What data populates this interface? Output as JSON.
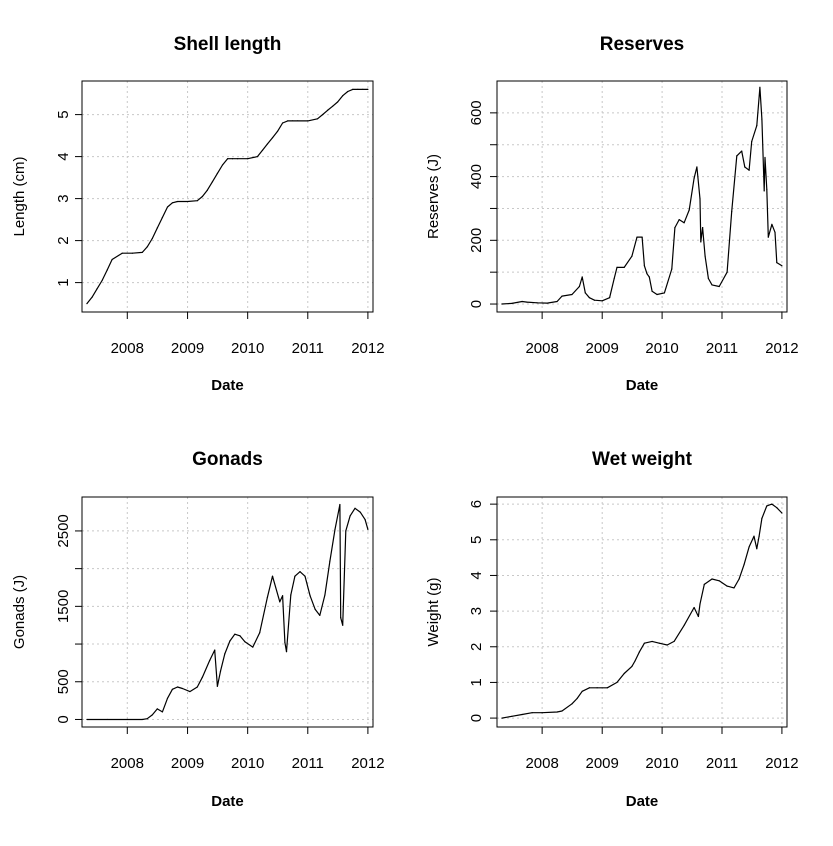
{
  "chart_data": [
    {
      "type": "line",
      "title": "Shell length",
      "xlabel": "Date",
      "ylabel": "Length (cm)",
      "x_ticks": [
        "2008",
        "2009",
        "2010",
        "2011",
        "2012"
      ],
      "y_ticks": [
        "1",
        "2",
        "3",
        "4",
        "5"
      ],
      "xlim": [
        "2007-04-01",
        "2012-02-01"
      ],
      "ylim": [
        0.3,
        5.8
      ],
      "grid": true,
      "series": [
        {
          "x": [
            "2007-05-01",
            "2007-06-01",
            "2007-07-01",
            "2007-08-01",
            "2007-09-01",
            "2007-10-01",
            "2007-12-01",
            "2008-02-01",
            "2008-04-01",
            "2008-05-01",
            "2008-06-01",
            "2008-07-01",
            "2008-08-01",
            "2008-09-01",
            "2008-10-01",
            "2008-11-01",
            "2009-01-01",
            "2009-03-01",
            "2009-04-01",
            "2009-05-01",
            "2009-06-01",
            "2009-07-01",
            "2009-08-01",
            "2009-09-01",
            "2009-10-01",
            "2009-11-01",
            "2010-01-01",
            "2010-03-01",
            "2010-04-01",
            "2010-05-01",
            "2010-06-01",
            "2010-07-01",
            "2010-08-01",
            "2010-09-01",
            "2010-10-01",
            "2010-11-01",
            "2011-01-01",
            "2011-03-01",
            "2011-04-01",
            "2011-05-01",
            "2011-06-01",
            "2011-07-01",
            "2011-08-01",
            "2011-09-01",
            "2011-10-01",
            "2011-11-01",
            "2011-12-01",
            "2012-01-01"
          ],
          "y": [
            0.5,
            0.65,
            0.85,
            1.05,
            1.3,
            1.55,
            1.7,
            1.7,
            1.72,
            1.85,
            2.05,
            2.3,
            2.55,
            2.8,
            2.9,
            2.93,
            2.93,
            2.95,
            3.05,
            3.2,
            3.4,
            3.6,
            3.8,
            3.95,
            3.95,
            3.95,
            3.95,
            4.0,
            4.15,
            4.3,
            4.45,
            4.6,
            4.8,
            4.85,
            4.85,
            4.85,
            4.85,
            4.9,
            5.0,
            5.1,
            5.2,
            5.3,
            5.45,
            5.55,
            5.6,
            5.6,
            5.6,
            5.6
          ]
        }
      ]
    },
    {
      "type": "line",
      "title": "Reserves",
      "xlabel": "Date",
      "ylabel": "Reserves (J)",
      "x_ticks": [
        "2008",
        "2009",
        "2010",
        "2011",
        "2012"
      ],
      "y_ticks": [
        "0",
        "200",
        "400",
        "600"
      ],
      "xlim": [
        "2007-04-01",
        "2012-02-01"
      ],
      "ylim": [
        -25,
        700
      ],
      "grid": true,
      "series": [
        {
          "x": [
            "2007-05-01",
            "2007-07-01",
            "2007-09-01",
            "2007-10-01",
            "2007-12-01",
            "2008-02-01",
            "2008-04-01",
            "2008-05-01",
            "2008-07-01",
            "2008-08-15",
            "2008-09-01",
            "2008-09-20",
            "2008-10-15",
            "2008-11-15",
            "2009-01-01",
            "2009-02-15",
            "2009-03-15",
            "2009-04-01",
            "2009-05-15",
            "2009-07-01",
            "2009-08-01",
            "2009-09-01",
            "2009-09-15",
            "2009-10-01",
            "2009-10-15",
            "2009-11-01",
            "2009-12-01",
            "2010-01-15",
            "2010-03-01",
            "2010-03-20",
            "2010-04-15",
            "2010-05-15",
            "2010-06-15",
            "2010-07-15",
            "2010-08-01",
            "2010-08-20",
            "2010-08-25",
            "2010-09-05",
            "2010-09-20",
            "2010-10-10",
            "2010-11-01",
            "2010-12-15",
            "2011-02-01",
            "2011-03-01",
            "2011-04-01",
            "2011-05-01",
            "2011-05-20",
            "2011-06-15",
            "2011-07-01",
            "2011-08-01",
            "2011-08-20",
            "2011-09-01",
            "2011-09-15",
            "2011-09-20",
            "2011-10-01",
            "2011-10-10",
            "2011-11-01",
            "2011-11-20",
            "2011-12-01",
            "2012-01-01"
          ],
          "y": [
            0,
            2,
            8,
            6,
            4,
            3,
            8,
            25,
            30,
            55,
            85,
            35,
            20,
            12,
            10,
            20,
            80,
            115,
            115,
            150,
            210,
            210,
            120,
            95,
            85,
            40,
            30,
            35,
            110,
            240,
            265,
            255,
            295,
            395,
            430,
            330,
            195,
            240,
            150,
            80,
            60,
            55,
            100,
            290,
            465,
            480,
            430,
            420,
            510,
            560,
            680,
            580,
            355,
            460,
            360,
            210,
            250,
            225,
            130,
            120
          ]
        }
      ]
    },
    {
      "type": "line",
      "title": "Gonads",
      "xlabel": "Date",
      "ylabel": "Gonads (J)",
      "x_ticks": [
        "2008",
        "2009",
        "2010",
        "2011",
        "2012"
      ],
      "y_ticks": [
        "0",
        "500",
        "1500",
        "2500"
      ],
      "xlim": [
        "2007-04-01",
        "2012-02-01"
      ],
      "ylim": [
        -100,
        2950
      ],
      "grid": true,
      "series": [
        {
          "x": [
            "2007-05-01",
            "2007-09-01",
            "2008-01-01",
            "2008-04-01",
            "2008-05-01",
            "2008-06-01",
            "2008-07-01",
            "2008-08-01",
            "2008-09-01",
            "2008-10-01",
            "2008-11-01",
            "2008-12-01",
            "2009-01-15",
            "2009-03-01",
            "2009-04-01",
            "2009-05-15",
            "2009-06-15",
            "2009-07-01",
            "2009-07-20",
            "2009-08-15",
            "2009-09-15",
            "2009-10-15",
            "2009-11-15",
            "2009-12-15",
            "2010-02-01",
            "2010-03-15",
            "2010-05-01",
            "2010-06-01",
            "2010-07-15",
            "2010-08-01",
            "2010-08-15",
            "2010-08-25",
            "2010-09-20",
            "2010-10-15",
            "2010-11-15",
            "2010-12-15",
            "2011-01-15",
            "2011-02-15",
            "2011-03-15",
            "2011-04-15",
            "2011-05-15",
            "2011-06-15",
            "2011-07-15",
            "2011-07-20",
            "2011-08-01",
            "2011-08-20",
            "2011-09-15",
            "2011-10-15",
            "2011-11-15",
            "2011-12-15",
            "2012-01-01"
          ],
          "y": [
            0,
            0,
            0,
            0,
            10,
            60,
            140,
            100,
            280,
            400,
            430,
            410,
            370,
            430,
            560,
            780,
            920,
            440,
            640,
            870,
            1040,
            1130,
            1110,
            1030,
            960,
            1150,
            1620,
            1900,
            1560,
            1640,
            1020,
            900,
            1650,
            1900,
            1960,
            1900,
            1640,
            1460,
            1380,
            1650,
            2100,
            2520,
            2850,
            1350,
            1250,
            2500,
            2700,
            2800,
            2750,
            2650,
            2520
          ]
        }
      ]
    },
    {
      "type": "line",
      "title": "Wet weight",
      "xlabel": "Date",
      "ylabel": "Weight (g)",
      "x_ticks": [
        "2008",
        "2009",
        "2010",
        "2011",
        "2012"
      ],
      "y_ticks": [
        "0",
        "1",
        "2",
        "3",
        "4",
        "5",
        "6"
      ],
      "xlim": [
        "2007-04-01",
        "2012-02-01"
      ],
      "ylim": [
        -0.25,
        6.2
      ],
      "grid": true,
      "series": [
        {
          "x": [
            "2007-05-01",
            "2007-07-01",
            "2007-09-01",
            "2007-11-01",
            "2008-01-01",
            "2008-04-01",
            "2008-05-01",
            "2008-07-01",
            "2008-08-01",
            "2008-09-01",
            "2008-10-15",
            "2008-12-01",
            "2009-02-01",
            "2009-04-01",
            "2009-05-15",
            "2009-07-01",
            "2009-07-20",
            "2009-08-15",
            "2009-09-15",
            "2009-11-01",
            "2009-12-15",
            "2010-02-01",
            "2010-03-15",
            "2010-05-15",
            "2010-07-15",
            "2010-08-10",
            "2010-08-20",
            "2010-09-15",
            "2010-11-01",
            "2010-12-15",
            "2011-02-01",
            "2011-03-15",
            "2011-04-15",
            "2011-05-15",
            "2011-06-15",
            "2011-07-15",
            "2011-08-01",
            "2011-08-15",
            "2011-09-01",
            "2011-10-01",
            "2011-11-01",
            "2011-12-01",
            "2012-01-01"
          ],
          "y": [
            0.0,
            0.05,
            0.1,
            0.15,
            0.15,
            0.17,
            0.2,
            0.4,
            0.55,
            0.75,
            0.85,
            0.85,
            0.85,
            1.0,
            1.25,
            1.45,
            1.6,
            1.85,
            2.1,
            2.15,
            2.1,
            2.05,
            2.15,
            2.6,
            3.1,
            2.85,
            3.2,
            3.75,
            3.9,
            3.85,
            3.7,
            3.65,
            3.9,
            4.3,
            4.8,
            5.1,
            4.75,
            5.1,
            5.6,
            5.95,
            6.0,
            5.9,
            5.75
          ]
        }
      ]
    }
  ]
}
